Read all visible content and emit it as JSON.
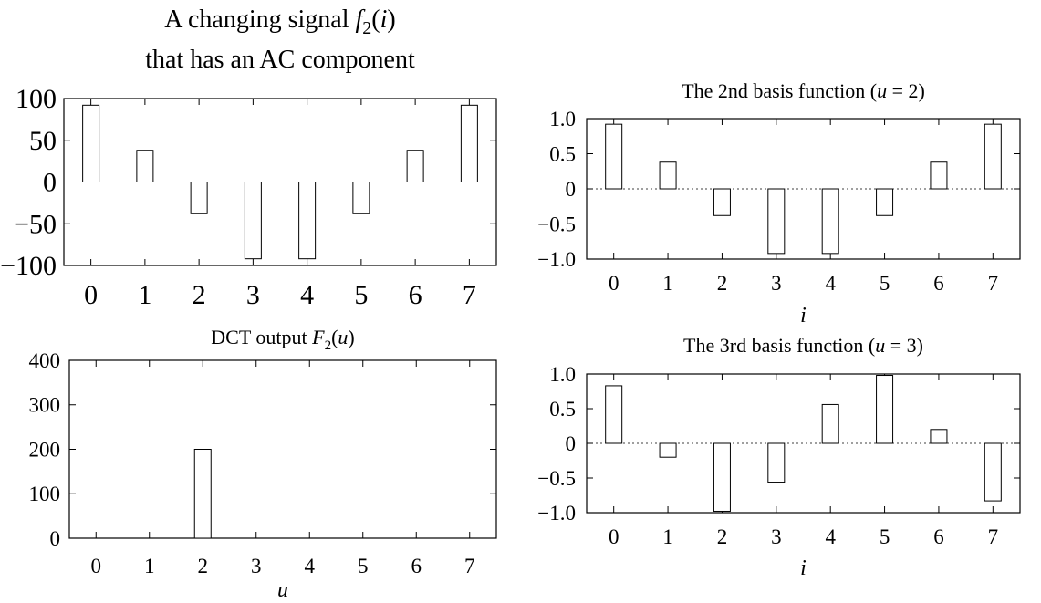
{
  "chart_data": [
    {
      "id": "signal",
      "type": "bar",
      "title_lines": [
        [
          {
            "t": "A changing signal "
          },
          {
            "t": "f",
            "i": true
          },
          {
            "t": "2",
            "sub": true
          },
          {
            "t": "("
          },
          {
            "t": "i",
            "i": true
          },
          {
            "t": ")"
          }
        ],
        [
          {
            "t": "that has an AC component"
          }
        ]
      ],
      "xlabel": "",
      "categories": [
        "0",
        "1",
        "2",
        "3",
        "4",
        "5",
        "6",
        "7"
      ],
      "values": [
        92,
        38,
        -38,
        -92,
        -92,
        -38,
        38,
        92
      ],
      "ylim": [
        -100,
        100
      ],
      "yticks": [
        100,
        50,
        0,
        -50,
        -100
      ],
      "ytick_labels": [
        "100",
        "50",
        "0",
        "−50",
        "−100"
      ],
      "zero_line": true,
      "grid": false
    },
    {
      "id": "dct",
      "type": "bar",
      "title_lines": [
        [
          {
            "t": "DCT output "
          },
          {
            "t": "F",
            "i": true
          },
          {
            "t": "2",
            "sub": true
          },
          {
            "t": "("
          },
          {
            "t": "u",
            "i": true
          },
          {
            "t": ")"
          }
        ]
      ],
      "xlabel": "u",
      "categories": [
        "0",
        "1",
        "2",
        "3",
        "4",
        "5",
        "6",
        "7"
      ],
      "values": [
        0,
        0,
        200,
        0,
        0,
        0,
        0,
        0
      ],
      "ylim": [
        0,
        400
      ],
      "yticks": [
        400,
        300,
        200,
        100,
        0
      ],
      "ytick_labels": [
        "400",
        "300",
        "200",
        "100",
        "0"
      ],
      "zero_line": false,
      "grid": false
    },
    {
      "id": "basis2",
      "type": "bar",
      "title_lines": [
        [
          {
            "t": "The 2nd basis function ("
          },
          {
            "t": "u",
            "i": true
          },
          {
            "t": " = 2)"
          }
        ]
      ],
      "xlabel": "i",
      "categories": [
        "0",
        "1",
        "2",
        "3",
        "4",
        "5",
        "6",
        "7"
      ],
      "values": [
        0.92,
        0.38,
        -0.38,
        -0.92,
        -0.92,
        -0.38,
        0.38,
        0.92
      ],
      "ylim": [
        -1.0,
        1.0
      ],
      "yticks": [
        1.0,
        0.5,
        0,
        -0.5,
        -1.0
      ],
      "ytick_labels": [
        "1.0",
        "0.5",
        "0",
        "−0.5",
        "−1.0"
      ],
      "zero_line": true,
      "grid": false
    },
    {
      "id": "basis3",
      "type": "bar",
      "title_lines": [
        [
          {
            "t": "The 3rd basis function ("
          },
          {
            "t": "u",
            "i": true
          },
          {
            "t": " = 3)"
          }
        ]
      ],
      "xlabel": "i",
      "categories": [
        "0",
        "1",
        "2",
        "3",
        "4",
        "5",
        "6",
        "7"
      ],
      "values": [
        0.83,
        -0.2,
        -0.98,
        -0.56,
        0.56,
        0.98,
        0.2,
        -0.83
      ],
      "ylim": [
        -1.0,
        1.0
      ],
      "yticks": [
        1.0,
        0.5,
        0,
        -0.5,
        -1.0
      ],
      "ytick_labels": [
        "1.0",
        "0.5",
        "0",
        "−0.5",
        "−1.0"
      ],
      "zero_line": true,
      "grid": false
    }
  ]
}
